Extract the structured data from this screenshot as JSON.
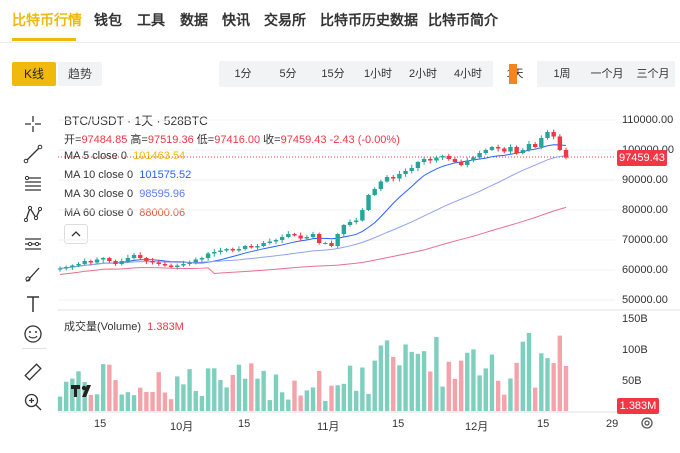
{
  "nav": {
    "items": [
      "比特币行情",
      "钱包",
      "工具",
      "数据",
      "快讯",
      "交易所",
      "比特币历史数据",
      "比特币简介"
    ],
    "active_index": 0,
    "accent": "#f0b90b"
  },
  "view": {
    "kline": "K线",
    "trend": "趋势"
  },
  "timeframes": [
    "1分",
    "5分",
    "15分",
    "1小时",
    "2小时",
    "4小时",
    "1天",
    "1周",
    "一个月",
    "三个月"
  ],
  "timeframes_active": "1天",
  "tools": [
    "crosshair-icon",
    "trendline-icon",
    "fib-lines-icon",
    "pattern-icon",
    "measure-lines-icon",
    "brush-icon",
    "text-icon",
    "emoji-icon",
    "ruler-icon",
    "zoom-icon"
  ],
  "header": {
    "symbol": "BTC/USDT · 1天 · 528BTC",
    "ohlc": {
      "open_label": "开=",
      "open": "97484.85",
      "high_label": "高=",
      "high": "97519.36",
      "low_label": "低=",
      "low": "97416.00",
      "close_label": "收=",
      "close": "97459.43",
      "change": "-2.43 (-0.00%)"
    },
    "ma": [
      {
        "label": "MA 5 close 0",
        "value": "101463.54"
      },
      {
        "label": "MA 10 close 0",
        "value": "101575.52"
      },
      {
        "label": "MA 30 close 0",
        "value": "98595.96"
      },
      {
        "label": "MA 60 close 0",
        "value": "88000.06"
      }
    ],
    "volume_label": "成交量(Volume)",
    "volume_value": "1.383M"
  },
  "price_axis": [
    "110000.00",
    "100000.00",
    "90000.00",
    "80000.00",
    "70000.00",
    "60000.00",
    "50000.00"
  ],
  "volume_axis": [
    "150B",
    "100B",
    "50B"
  ],
  "time_axis": [
    "15",
    "10月",
    "15",
    "11月",
    "15",
    "12月",
    "15",
    "29"
  ],
  "last_price_tag": "97459.43",
  "last_volume_tag": "1.383M",
  "colors": {
    "up": "#26a69a",
    "down": "#f23645",
    "up_vol": "#7fcfbf",
    "down_vol": "#f5a3ab"
  },
  "chart_data": {
    "type": "candlestick",
    "title": "BTC/USDT · 1天 · 528BTC",
    "ylim": [
      50000,
      110000
    ],
    "series": [
      {
        "name": "BTC/USDT",
        "close_approx": [
          60500,
          61000,
          61500,
          62000,
          63000,
          62500,
          63500,
          64000,
          63000,
          62000,
          63000,
          64000,
          65000,
          64000,
          63000,
          62500,
          62000,
          61500,
          61000,
          61500,
          62000,
          62500,
          63500,
          64000,
          65500,
          66000,
          66500,
          67000,
          66500,
          67000,
          68000,
          67500,
          68000,
          69000,
          69500,
          70000,
          71000,
          72000,
          71500,
          70500,
          71000,
          72000,
          69000,
          69000,
          68000,
          72000,
          75000,
          76000,
          76500,
          80000,
          85000,
          87000,
          89500,
          91000,
          90500,
          92000,
          93000,
          94000,
          96000,
          97000,
          96500,
          97500,
          98000,
          97000,
          96000,
          95000,
          96500,
          97500,
          99000,
          100000,
          101000,
          100500,
          99500,
          101000,
          99000,
          100000,
          102000,
          101000,
          104000,
          106000,
          104500,
          100000,
          97459
        ]
      }
    ],
    "xlabel": "",
    "ylabel": ""
  }
}
